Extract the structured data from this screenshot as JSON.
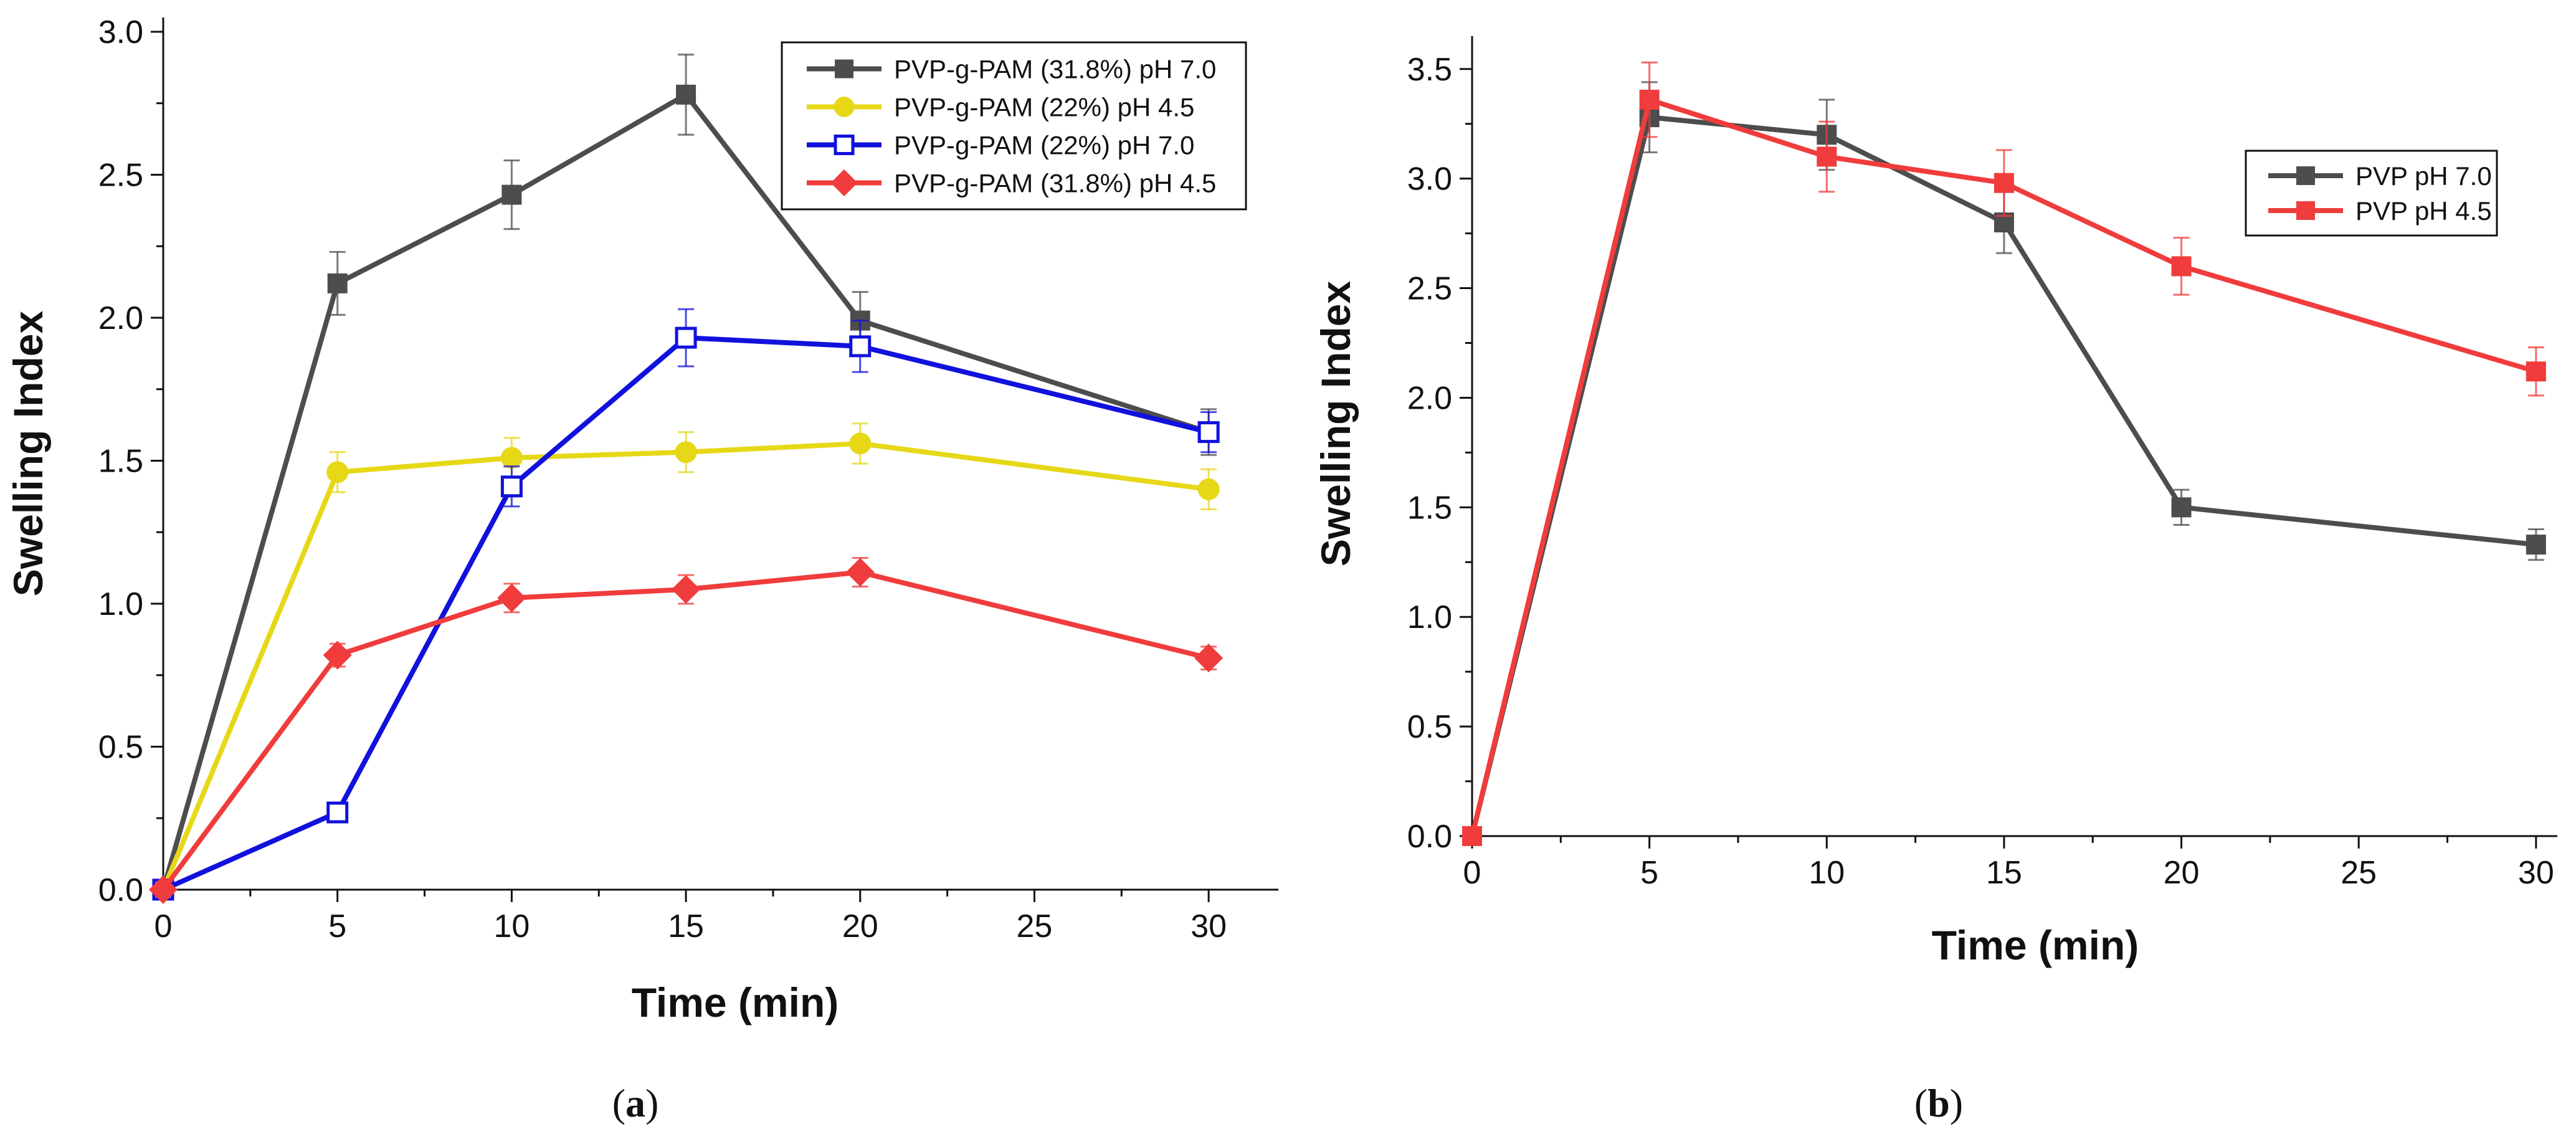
{
  "chart_data": [
    {
      "type": "line",
      "panel": "a",
      "caption": {
        "open": "(",
        "letter": "a",
        "close": ")"
      },
      "xlabel": "Time (min)",
      "ylabel": "Swelling Index",
      "xlim": [
        0,
        32
      ],
      "ylim": [
        0,
        3.05
      ],
      "xticks": [
        0,
        5,
        10,
        15,
        20,
        25,
        30
      ],
      "xtick_labels": [
        "0",
        "5",
        "10",
        "15",
        "20",
        "25",
        "30"
      ],
      "yticks": [
        0,
        0.5,
        1.0,
        1.5,
        2.0,
        2.5,
        3.0
      ],
      "ytick_labels": [
        "0.0",
        "0.5",
        "1.0",
        "1.5",
        "2.0",
        "2.5",
        "3.0"
      ],
      "grid": false,
      "legend_position": "top-right",
      "series": [
        {
          "name": "PVP-g-PAM (31.8%) pH 7.0",
          "color": "#4d4d4d",
          "marker": "square",
          "filled": true,
          "x": [
            0,
            5,
            10,
            15,
            20,
            30
          ],
          "values": [
            0,
            2.12,
            2.43,
            2.78,
            1.99,
            1.6
          ],
          "errors": [
            0,
            0.11,
            0.12,
            0.14,
            0.1,
            0.08
          ]
        },
        {
          "name": "PVP-g-PAM (22%) pH 4.5",
          "color": "#e6d817",
          "marker": "circle",
          "filled": true,
          "x": [
            0,
            5,
            10,
            15,
            20,
            30
          ],
          "values": [
            0,
            1.46,
            1.51,
            1.53,
            1.56,
            1.4
          ],
          "errors": [
            0,
            0.07,
            0.07,
            0.07,
            0.07,
            0.07
          ]
        },
        {
          "name": "PVP-g-PAM (22%) pH 7.0",
          "color": "#1111dd",
          "marker": "square",
          "filled": false,
          "x": [
            0,
            5,
            10,
            15,
            20,
            30
          ],
          "values": [
            0,
            0.27,
            1.41,
            1.93,
            1.9,
            1.6
          ],
          "errors": [
            0,
            0.02,
            0.07,
            0.1,
            0.09,
            0.07
          ]
        },
        {
          "name": "PVP-g-PAM (31.8%) pH 4.5",
          "color": "#f03c3c",
          "marker": "diamond",
          "filled": true,
          "x": [
            0,
            5,
            10,
            15,
            20,
            30
          ],
          "values": [
            0,
            0.82,
            1.02,
            1.05,
            1.11,
            0.81
          ],
          "errors": [
            0,
            0.04,
            0.05,
            0.05,
            0.05,
            0.04
          ]
        }
      ]
    },
    {
      "type": "line",
      "panel": "b",
      "caption": {
        "open": "(",
        "letter": "b",
        "close": ")"
      },
      "xlabel": "Time (min)",
      "ylabel": "Swelling Index",
      "xlim": [
        0,
        30.6
      ],
      "ylim": [
        0,
        3.65
      ],
      "xticks": [
        0,
        5,
        10,
        15,
        20,
        25,
        30
      ],
      "xtick_labels": [
        "0",
        "5",
        "10",
        "15",
        "20",
        "25",
        "30"
      ],
      "yticks": [
        0,
        0.5,
        1.0,
        1.5,
        2.0,
        2.5,
        3.0,
        3.5
      ],
      "ytick_labels": [
        "0.0",
        "0.5",
        "1.0",
        "1.5",
        "2.0",
        "2.5",
        "3.0",
        "3.5"
      ],
      "grid": false,
      "legend_position": "top-right",
      "series": [
        {
          "name": "PVP pH 7.0",
          "color": "#4d4d4d",
          "marker": "square",
          "filled": true,
          "x": [
            0,
            5,
            10,
            15,
            20,
            30
          ],
          "values": [
            0,
            3.28,
            3.2,
            2.8,
            1.5,
            1.33
          ],
          "errors": [
            0,
            0.16,
            0.16,
            0.14,
            0.08,
            0.07
          ]
        },
        {
          "name": "PVP pH 4.5",
          "color": "#f03c3c",
          "marker": "square",
          "filled": true,
          "x": [
            0,
            5,
            10,
            15,
            20,
            30
          ],
          "values": [
            0,
            3.36,
            3.1,
            2.98,
            2.6,
            2.12
          ],
          "errors": [
            0,
            0.17,
            0.16,
            0.15,
            0.13,
            0.11
          ]
        }
      ]
    }
  ]
}
